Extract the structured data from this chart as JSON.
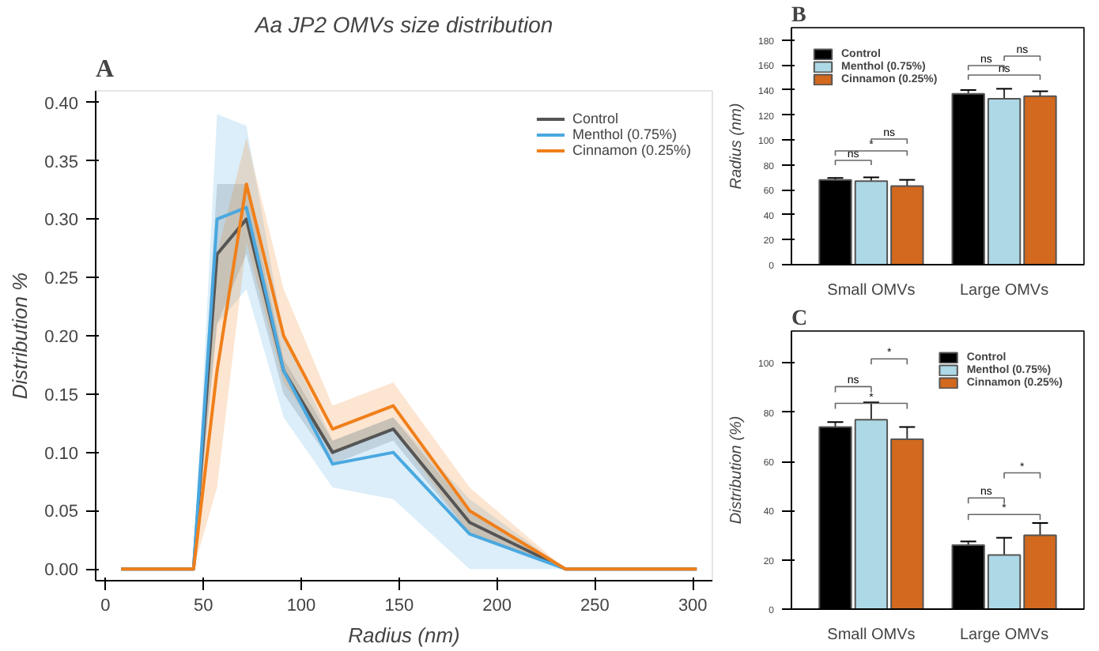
{
  "chart_data": [
    {
      "type": "line",
      "title": "Aa JP2 OMVs size distribution",
      "xlabel": "Radius (nm)",
      "ylabel": "Distribution %",
      "annotations": [
        "A"
      ],
      "x": [
        8,
        45,
        57,
        72,
        91,
        116,
        147,
        186,
        235,
        302
      ],
      "xlim": [
        -5,
        310
      ],
      "xticks": [
        0,
        50,
        100,
        150,
        200,
        250,
        300
      ],
      "ylim": [
        -0.01,
        0.41
      ],
      "yticks": [
        {
          "value": 0,
          "label": "0.00"
        },
        0.05,
        {
          "value": 0.1,
          "label": "0.10"
        },
        0.15,
        {
          "value": 0.2,
          "label": "0.20"
        },
        0.25,
        {
          "value": 0.3,
          "label": "0.30"
        },
        0.35,
        {
          "value": 0.4,
          "label": "0.40"
        }
      ],
      "grid": false,
      "legend": "top right",
      "series": [
        {
          "name": "Control",
          "color": "#555555",
          "values": [
            0,
            0,
            0.27,
            0.3,
            0.17,
            0.1,
            0.12,
            0.04,
            0,
            0
          ],
          "lower": [
            0,
            0,
            0.21,
            0.27,
            0.15,
            0.09,
            0.11,
            0.03,
            0,
            0
          ],
          "upper": [
            0,
            0,
            0.33,
            0.33,
            0.18,
            0.11,
            0.13,
            0.05,
            0,
            0
          ]
        },
        {
          "name": "Menthol (0.75%)",
          "color": "#4aa8e0",
          "values": [
            0,
            0,
            0.3,
            0.31,
            0.17,
            0.09,
            0.1,
            0.03,
            0,
            0
          ],
          "lower": [
            0,
            0,
            0.21,
            0.24,
            0.13,
            0.07,
            0.06,
            0.0,
            0,
            0
          ],
          "upper": [
            0,
            0,
            0.39,
            0.38,
            0.2,
            0.11,
            0.13,
            0.06,
            0,
            0
          ]
        },
        {
          "name": "Cinnamon (0.25%)",
          "color": "#f07f1a",
          "values": [
            0,
            0,
            0.17,
            0.33,
            0.2,
            0.12,
            0.14,
            0.05,
            0,
            0
          ],
          "lower": [
            0,
            0,
            0.07,
            0.28,
            0.16,
            0.1,
            0.12,
            0.03,
            0,
            0
          ],
          "upper": [
            0,
            0,
            0.27,
            0.37,
            0.24,
            0.14,
            0.16,
            0.07,
            0,
            0
          ]
        }
      ]
    },
    {
      "type": "bar",
      "ylabel": "Radius (nm)",
      "annotations": [
        "B",
        "ns",
        "*",
        "ns",
        "ns",
        "ns",
        "ns"
      ],
      "categories": [
        "Small OMVs",
        "Large OMVs"
      ],
      "ylim": [
        0,
        190
      ],
      "yticks": [
        0,
        20,
        40,
        60,
        80,
        100,
        120,
        140,
        160,
        180
      ],
      "grid": false,
      "legend": "top left",
      "series": [
        {
          "name": "Control",
          "color": "#000000",
          "values": [
            68,
            137
          ],
          "errors": [
            1.5,
            3
          ]
        },
        {
          "name": "Menthol (0.75%)",
          "color": "#add8e6",
          "values": [
            67,
            133
          ],
          "errors": [
            3,
            8
          ]
        },
        {
          "name": "Cinnamon (0.25%)",
          "color": "#d2691e",
          "values": [
            63,
            135
          ],
          "errors": [
            5,
            4
          ]
        }
      ]
    },
    {
      "type": "bar",
      "ylabel": "Distribution (%)",
      "annotations": [
        "C",
        "ns",
        "*",
        "*",
        "ns",
        "*",
        "*"
      ],
      "categories": [
        "Small OMVs",
        "Large OMVs"
      ],
      "ylim": [
        0,
        113
      ],
      "yticks": [
        0,
        20,
        40,
        60,
        80,
        100
      ],
      "grid": false,
      "legend": "top right",
      "series": [
        {
          "name": "Control",
          "color": "#000000",
          "values": [
            74,
            26
          ],
          "errors": [
            2,
            1.5
          ]
        },
        {
          "name": "Menthol (0.75%)",
          "color": "#add8e6",
          "values": [
            77,
            22
          ],
          "errors": [
            7,
            7
          ]
        },
        {
          "name": "Cinnamon (0.25%)",
          "color": "#d2691e",
          "values": [
            69,
            30
          ],
          "errors": [
            5,
            5
          ]
        }
      ]
    }
  ]
}
